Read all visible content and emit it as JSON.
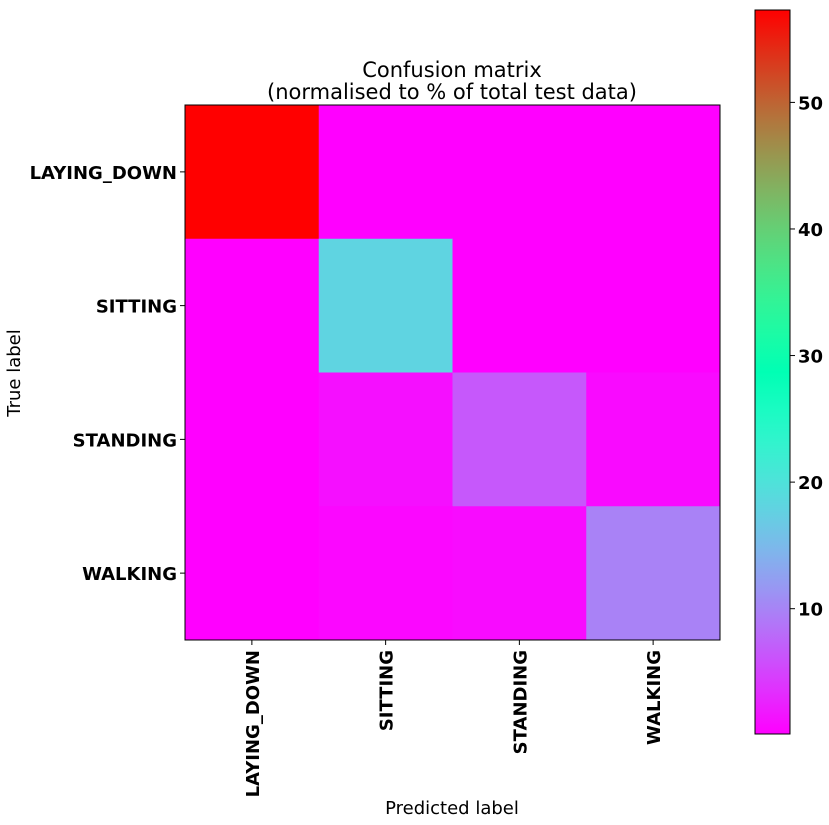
{
  "chart_data": {
    "type": "heatmap",
    "title_line1": "Confusion matrix",
    "title_line2": "(normalised to % of total test data)",
    "xlabel": "Predicted label",
    "ylabel": "True label",
    "x_categories": [
      "LAYING_DOWN",
      "SITTING",
      "STANDING",
      "WALKING"
    ],
    "y_categories": [
      "LAYING_DOWN",
      "SITTING",
      "STANDING",
      "WALKING"
    ],
    "values": [
      [
        57.3,
        0.1,
        0.1,
        0.1
      ],
      [
        0.1,
        18.0,
        0.1,
        0.1
      ],
      [
        0.1,
        1.2,
        6.5,
        0.8
      ],
      [
        0.1,
        0.6,
        0.9,
        9.8
      ]
    ],
    "colormap": "rainbow",
    "color_range": [
      0.1,
      57.3
    ],
    "colorbar_ticks": [
      "10",
      "20",
      "30",
      "40",
      "50"
    ],
    "colorbar_tick_values": [
      10,
      20,
      30,
      40,
      50
    ],
    "grid": false
  }
}
